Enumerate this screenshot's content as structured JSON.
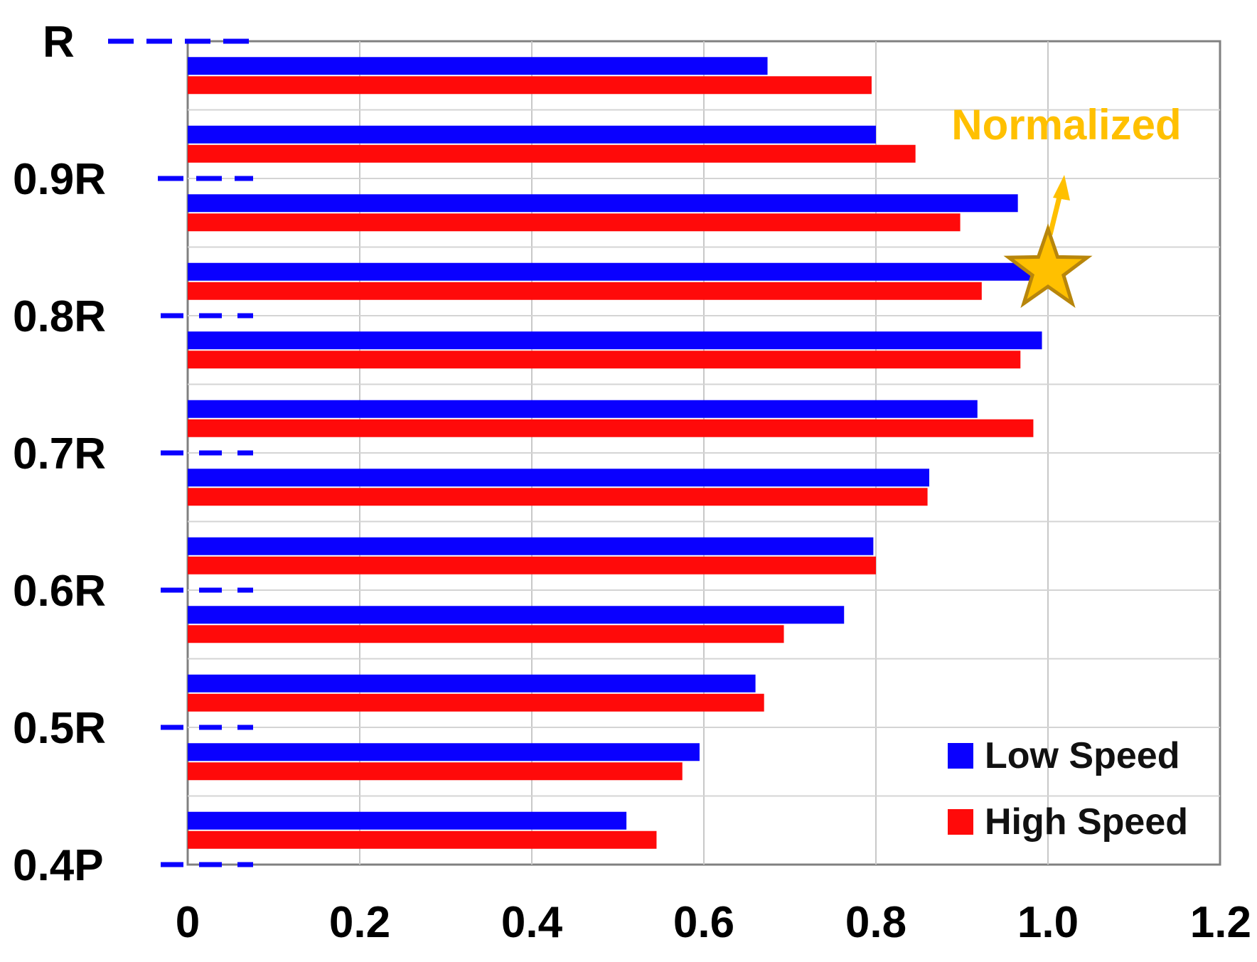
{
  "chart_data": {
    "type": "bar",
    "orientation": "horizontal",
    "title": "",
    "xlabel": "",
    "ylabel": "",
    "xlim": [
      0,
      1.2
    ],
    "x_ticks": [
      "0",
      "0.2",
      "0.4",
      "0.6",
      "0.8",
      "1.0",
      "1.2"
    ],
    "y_ticks": [
      "R",
      "0.9R",
      "0.8R",
      "0.7R",
      "0.6R",
      "0.5R",
      "0.4P"
    ],
    "grid": true,
    "legend_position": "bottom-right",
    "colors": {
      "low": "#0a00ff",
      "high": "#ff0a0a",
      "annotation": "#ffc000",
      "star": "#b8860b"
    },
    "series": [
      {
        "name": "Low Speed",
        "values": [
          0.674,
          0.8,
          0.965,
          0.98,
          0.993,
          0.918,
          0.862,
          0.797,
          0.763,
          0.66,
          0.595,
          0.51
        ]
      },
      {
        "name": "High Speed",
        "values": [
          0.795,
          0.846,
          0.898,
          0.923,
          0.968,
          0.983,
          0.86,
          0.8,
          0.693,
          0.67,
          0.575,
          0.545
        ]
      }
    ],
    "annotation": {
      "text": "Normalized",
      "x": 1.0,
      "y_between": [
        "0.9R",
        "0.8R"
      ]
    }
  }
}
